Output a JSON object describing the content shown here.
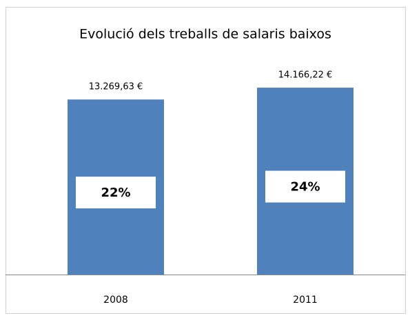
{
  "chart_data": {
    "type": "bar",
    "title": "Evolució dels treballs de salaris baixos",
    "categories": [
      "2008",
      "2011"
    ],
    "values": [
      13269.63,
      14166.22
    ],
    "value_labels": [
      "13.269,63 €",
      "14.166,22 €"
    ],
    "annotations": [
      "22%",
      "24%"
    ],
    "color": "#4f81bd",
    "ylim": [
      0,
      16000
    ]
  }
}
